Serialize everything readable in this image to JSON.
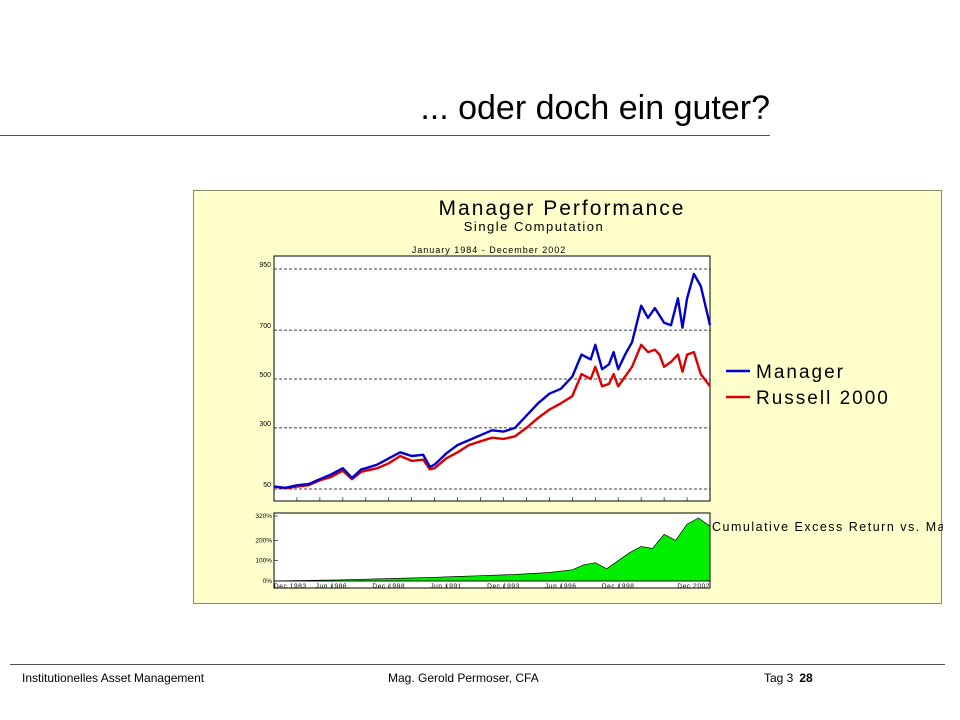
{
  "slide": {
    "title": "... oder doch ein guter?",
    "footer_left": "Institutionelles Asset Management",
    "footer_center": "Mag. Gerold Permoser, CFA",
    "footer_day": "Tag 3",
    "footer_page": "28"
  },
  "colors": {
    "panel_bg": "#ffffcc",
    "manager": "#0000cc",
    "russell": "#dd0000",
    "excess_fill": "#00ee00"
  },
  "chart_data": [
    {
      "type": "line",
      "title": "Manager Performance",
      "subtitle": "Single Computation",
      "period": "January 1984 - December 2002",
      "y_ticks": [
        50,
        300,
        500,
        700,
        950
      ],
      "ylim": [
        50,
        950
      ],
      "grid": true,
      "legend_position": "right",
      "x": [
        1984.0,
        1984.5,
        1985.0,
        1985.5,
        1986.0,
        1986.5,
        1987.0,
        1987.4,
        1987.8,
        1988.0,
        1988.5,
        1989.0,
        1989.5,
        1990.0,
        1990.5,
        1990.8,
        1991.0,
        1991.5,
        1992.0,
        1992.5,
        1993.0,
        1993.5,
        1994.0,
        1994.5,
        1995.0,
        1995.5,
        1996.0,
        1996.5,
        1997.0,
        1997.4,
        1997.8,
        1998.0,
        1998.3,
        1998.6,
        1998.8,
        1999.0,
        1999.3,
        1999.6,
        2000.0,
        2000.3,
        2000.6,
        2000.8,
        2001.0,
        2001.3,
        2001.6,
        2001.8,
        2002.0,
        2002.3,
        2002.6,
        2003.0
      ],
      "series": [
        {
          "name": "Manager",
          "color": "#0000cc",
          "values": [
            60,
            55,
            65,
            70,
            90,
            110,
            135,
            95,
            130,
            135,
            150,
            175,
            200,
            185,
            190,
            140,
            150,
            195,
            230,
            250,
            270,
            290,
            285,
            300,
            350,
            400,
            440,
            460,
            510,
            600,
            580,
            640,
            540,
            560,
            610,
            540,
            600,
            650,
            800,
            750,
            790,
            760,
            730,
            720,
            830,
            710,
            830,
            930,
            880,
            720
          ]
        },
        {
          "name": "Russell 2000",
          "color": "#dd0000",
          "values": [
            60,
            53,
            60,
            65,
            85,
            100,
            125,
            90,
            120,
            125,
            135,
            155,
            185,
            165,
            170,
            130,
            135,
            175,
            200,
            230,
            245,
            260,
            255,
            265,
            300,
            340,
            375,
            400,
            430,
            520,
            500,
            550,
            470,
            480,
            520,
            470,
            510,
            550,
            640,
            610,
            620,
            600,
            550,
            570,
            600,
            530,
            600,
            610,
            520,
            470
          ]
        }
      ]
    },
    {
      "type": "area",
      "title": "Cumulative Excess Return vs. Market Benchmark",
      "y_ticks": [
        "0%",
        "100%",
        "200%",
        "320%"
      ],
      "ylim": [
        0,
        320
      ],
      "x_ticks": [
        "Dec 1983",
        "Jun 1986",
        "Dec 1988",
        "Jun 1991",
        "Dec 1993",
        "Jun 1996",
        "Dec 1998",
        "Dec 2002"
      ],
      "x": [
        1984.0,
        1985.0,
        1986.0,
        1987.0,
        1988.0,
        1989.0,
        1990.0,
        1991.0,
        1992.0,
        1993.0,
        1994.0,
        1995.0,
        1996.0,
        1997.0,
        1997.5,
        1998.0,
        1998.5,
        1999.0,
        1999.5,
        2000.0,
        2000.5,
        2001.0,
        2001.5,
        2002.0,
        2002.5,
        2003.0
      ],
      "series": [
        {
          "name": "",
          "color": "#00ee00",
          "values": [
            0,
            2,
            4,
            6,
            9,
            12,
            15,
            18,
            22,
            26,
            30,
            35,
            42,
            55,
            80,
            90,
            60,
            100,
            140,
            170,
            160,
            230,
            200,
            280,
            310,
            270
          ]
        }
      ]
    }
  ]
}
